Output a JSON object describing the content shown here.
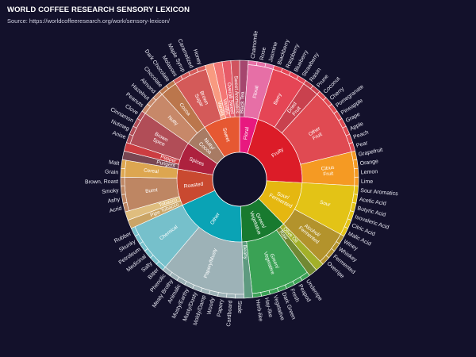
{
  "header": {
    "title": "WORLD COFFEE RESEARCH SENSORY LEXICON",
    "source": "Source: https://worldcoffeeresearch.org/work/sensory-lexicon/"
  },
  "chart_data": {
    "type": "sunburst",
    "title": "WORLD COFFEE RESEARCH SENSORY LEXICON",
    "start_angle_deg": 0,
    "direction": "clockwise",
    "hierarchy": [
      {
        "name": "Floral",
        "color": "#e8197f",
        "children": [
          {
            "name": "Black Tea",
            "color": "#a5466e",
            "children": []
          },
          {
            "name": "Floral",
            "color": "#e66fa6",
            "children": [
              {
                "name": "Chamomile",
                "color": "#e66fa6"
              },
              {
                "name": "Rose",
                "color": "#e66fa6"
              },
              {
                "name": "Jasmine",
                "color": "#e66fa6"
              }
            ]
          }
        ]
      },
      {
        "name": "Fruity",
        "color": "#dc1c28",
        "children": [
          {
            "name": "Berry",
            "color": "#e54555",
            "children": [
              {
                "name": "Blackberry",
                "color": "#e54555"
              },
              {
                "name": "Raspberry",
                "color": "#e54555"
              },
              {
                "name": "Blueberry",
                "color": "#e54555"
              },
              {
                "name": "Strawberry",
                "color": "#e54555"
              }
            ]
          },
          {
            "name": "Dried Fruit",
            "color": "#c9414e",
            "children": [
              {
                "name": "Raisin",
                "color": "#c9414e"
              },
              {
                "name": "Prune",
                "color": "#c9414e"
              }
            ]
          },
          {
            "name": "Other Fruit",
            "color": "#e04a52",
            "children": [
              {
                "name": "Coconut",
                "color": "#e04a52"
              },
              {
                "name": "Cherry",
                "color": "#e04a52"
              },
              {
                "name": "Pomegranate",
                "color": "#e04a52"
              },
              {
                "name": "Pineapple",
                "color": "#e04a52"
              },
              {
                "name": "Grape",
                "color": "#e04a52"
              },
              {
                "name": "Apple",
                "color": "#e04a52"
              },
              {
                "name": "Peach",
                "color": "#e04a52"
              },
              {
                "name": "Pear",
                "color": "#e04a52"
              }
            ]
          },
          {
            "name": "Citrus Fruit",
            "color": "#f59a23",
            "children": [
              {
                "name": "Grapefruit",
                "color": "#f59a23"
              },
              {
                "name": "Orange",
                "color": "#f59a23"
              },
              {
                "name": "Lemon",
                "color": "#f59a23"
              },
              {
                "name": "Lime",
                "color": "#f59a23"
              }
            ]
          }
        ]
      },
      {
        "name": "Sour/ Fermented",
        "color": "#e5b710",
        "children": [
          {
            "name": "Sour",
            "color": "#e3c316",
            "children": [
              {
                "name": "Sour Aromatics",
                "color": "#e3c316"
              },
              {
                "name": "Acetic Acid",
                "color": "#e3c316"
              },
              {
                "name": "Butyric Acid",
                "color": "#e3c316"
              },
              {
                "name": "Isovaleric Acid",
                "color": "#e3c316"
              },
              {
                "name": "Citric Acid",
                "color": "#e3c316"
              },
              {
                "name": "Malic Acid",
                "color": "#e3c316"
              }
            ]
          },
          {
            "name": "Alcohol/ Fermented",
            "color": "#b3932c",
            "children": [
              {
                "name": "Winey",
                "color": "#b3932c"
              },
              {
                "name": "Whiskey",
                "color": "#b3932c"
              },
              {
                "name": "Fermented",
                "color": "#b3932c"
              },
              {
                "name": "Overripe",
                "color": "#b3932c"
              }
            ]
          }
        ]
      },
      {
        "name": "Green/ Vegetative",
        "color": "#187a2f",
        "children": [
          {
            "name": "Olive Oil",
            "color": "#a2b029",
            "children": []
          },
          {
            "name": "Raw",
            "color": "#718933",
            "children": []
          },
          {
            "name": "Green/ Vegetative",
            "color": "#3aa255",
            "children": [
              {
                "name": "Underripe",
                "color": "#3aa255"
              },
              {
                "name": "Peapod",
                "color": "#3aa255"
              },
              {
                "name": "Fresh",
                "color": "#3aa255"
              },
              {
                "name": "Dark Green",
                "color": "#3aa255"
              },
              {
                "name": "Vegetative",
                "color": "#3aa255"
              },
              {
                "name": "Hay-like",
                "color": "#3aa255"
              },
              {
                "name": "Herb-like",
                "color": "#3aa255"
              }
            ]
          },
          {
            "name": "Beany",
            "color": "#5e9a80",
            "children": []
          }
        ]
      },
      {
        "name": "Other",
        "color": "#0aa3b5",
        "children": [
          {
            "name": "Papery/Musty",
            "color": "#9db2b7",
            "children": [
              {
                "name": "Stale",
                "color": "#9db2b7"
              },
              {
                "name": "Cardboard",
                "color": "#9db2b7"
              },
              {
                "name": "Papery",
                "color": "#9db2b7"
              },
              {
                "name": "Woody",
                "color": "#9db2b7"
              },
              {
                "name": "Moldy/Damp",
                "color": "#9db2b7"
              },
              {
                "name": "Musty/Dusty",
                "color": "#9db2b7"
              },
              {
                "name": "Musty/Earthy",
                "color": "#9db2b7"
              },
              {
                "name": "Animalic",
                "color": "#9db2b7"
              },
              {
                "name": "Meaty Brothy",
                "color": "#9db2b7"
              },
              {
                "name": "Phenolic",
                "color": "#9db2b7"
              }
            ]
          },
          {
            "name": "Chemical",
            "color": "#76c0cb",
            "children": [
              {
                "name": "Bitter",
                "color": "#76c0cb"
              },
              {
                "name": "Salty",
                "color": "#76c0cb"
              },
              {
                "name": "Medicinal",
                "color": "#76c0cb"
              },
              {
                "name": "Petroleum",
                "color": "#76c0cb"
              },
              {
                "name": "Skunky",
                "color": "#76c0cb"
              },
              {
                "name": "Rubber",
                "color": "#76c0cb"
              }
            ]
          }
        ]
      },
      {
        "name": "Roasted",
        "color": "#c94930",
        "children": [
          {
            "name": "Pipe Tobacco",
            "color": "#caa465",
            "children": []
          },
          {
            "name": "Tobacco",
            "color": "#dfbd7e",
            "children": []
          },
          {
            "name": "Burnt",
            "color": "#be8663",
            "children": [
              {
                "name": "Acrid",
                "color": "#be8663"
              },
              {
                "name": "Ashy",
                "color": "#be8663"
              },
              {
                "name": "Smoky",
                "color": "#be8663"
              },
              {
                "name": "Brown, Roast",
                "color": "#be8663"
              }
            ]
          },
          {
            "name": "Cereal",
            "color": "#dda650",
            "children": [
              {
                "name": "Grain",
                "color": "#dda650"
              },
              {
                "name": "Malt",
                "color": "#dda650"
              }
            ]
          }
        ]
      },
      {
        "name": "Spices",
        "color": "#ad213e",
        "children": [
          {
            "name": "Pungent",
            "color": "#794752",
            "children": []
          },
          {
            "name": "Pepper",
            "color": "#cc3d41",
            "children": []
          },
          {
            "name": "Brown Spice",
            "color": "#b14d57",
            "children": [
              {
                "name": "Anise",
                "color": "#b14d57"
              },
              {
                "name": "Nutmeg",
                "color": "#b14d57"
              },
              {
                "name": "Cinnamon",
                "color": "#b14d57"
              },
              {
                "name": "Clove",
                "color": "#b14d57"
              }
            ]
          }
        ]
      },
      {
        "name": "Nutty/ Cocoa",
        "color": "#a87b64",
        "children": [
          {
            "name": "Nutty",
            "color": "#c78869",
            "children": [
              {
                "name": "Peanuts",
                "color": "#c78869"
              },
              {
                "name": "Hazelnut",
                "color": "#c78869"
              },
              {
                "name": "Almond",
                "color": "#c78869"
              }
            ]
          },
          {
            "name": "Cocoa",
            "color": "#bb764c",
            "children": [
              {
                "name": "Chocolate",
                "color": "#bb764c"
              },
              {
                "name": "Dark Chocolate",
                "color": "#bb764c"
              }
            ]
          }
        ]
      },
      {
        "name": "Sweet",
        "color": "#e65832",
        "children": [
          {
            "name": "Brown Sugar",
            "color": "#d45a59",
            "children": [
              {
                "name": "Molasses",
                "color": "#d45a59"
              },
              {
                "name": "Maple Syrup",
                "color": "#d45a59"
              },
              {
                "name": "Caramelized",
                "color": "#d45a59"
              },
              {
                "name": "Honey",
                "color": "#d45a59"
              }
            ]
          },
          {
            "name": "Vanilla",
            "color": "#f89a80",
            "children": []
          },
          {
            "name": "Vanillin",
            "color": "#f37674",
            "children": []
          },
          {
            "name": "Overall Sweet",
            "color": "#e75b68",
            "children": []
          },
          {
            "name": "Sweet Aromatics",
            "color": "#d0545f",
            "children": []
          }
        ]
      }
    ]
  }
}
